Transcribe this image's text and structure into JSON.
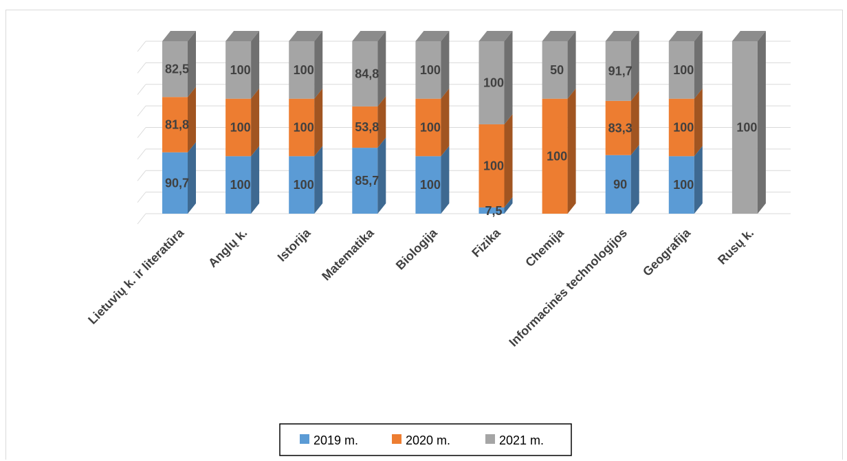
{
  "chart_data": {
    "type": "bar",
    "stacked": true,
    "style": "3d-stacked-column",
    "normalized": true,
    "categories": [
      "Lietuvių k. ir literatūra",
      "Anglų k.",
      "Istorija",
      "Matematika",
      "Biologija",
      "Fizika",
      "Chemija",
      "Informacinės technologijos",
      "Geografija",
      "Rusų k."
    ],
    "series": [
      {
        "name": "2019 m.",
        "color": "#5b9bd5",
        "values": [
          90.7,
          100,
          100,
          85.7,
          100,
          7.5,
          null,
          90,
          100,
          null
        ],
        "labels": [
          "90,7",
          "100",
          "100",
          "85,7",
          "100",
          "7,5",
          "",
          "90",
          "100",
          ""
        ]
      },
      {
        "name": "2020 m.",
        "color": "#ed7d31",
        "values": [
          81.8,
          100,
          100,
          53.8,
          100,
          100,
          100,
          83.3,
          100,
          null
        ],
        "labels": [
          "81,8",
          "100",
          "100",
          "53,8",
          "100",
          "100",
          "100",
          "83,3",
          "100",
          ""
        ]
      },
      {
        "name": "2021 m.",
        "color": "#a5a5a5",
        "values": [
          82.5,
          100,
          100,
          84.8,
          100,
          100,
          50,
          91.7,
          100,
          100
        ],
        "labels": [
          "82,5",
          "100",
          "100",
          "84,8",
          "100",
          "100",
          "50",
          "91,7",
          "100",
          "100"
        ]
      }
    ],
    "title": "",
    "xlabel": "",
    "ylabel": "",
    "grid": true,
    "legend_position": "bottom"
  }
}
